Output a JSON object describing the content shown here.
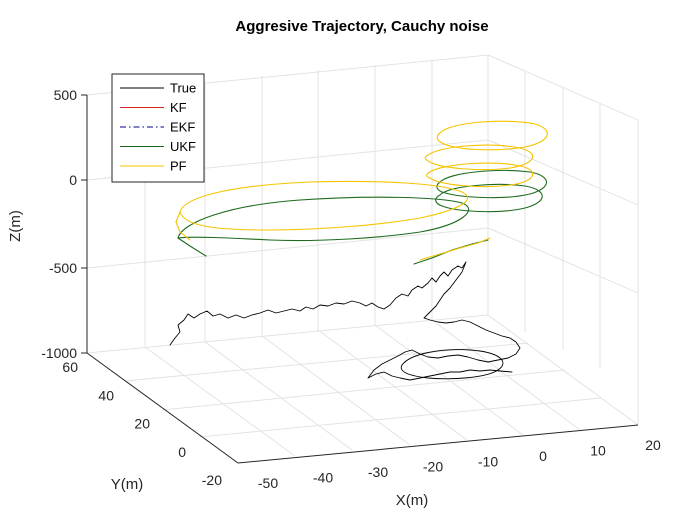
{
  "chart_data": {
    "type": "line",
    "title": "Aggresive Trajectory, Cauchy noise",
    "xlabel": "X(m)",
    "ylabel": "Y(m)",
    "zlabel": "Z(m)",
    "xlim": [
      -50,
      20
    ],
    "ylim": [
      -20,
      60
    ],
    "zlim": [
      -1000,
      500
    ],
    "xticks": [
      "-50",
      "-40",
      "-30",
      "-20",
      "-10",
      "0",
      "10",
      "20"
    ],
    "yticks": [
      "-20",
      "0",
      "20",
      "40",
      "60"
    ],
    "zticks": [
      "-1000",
      "-500",
      "0",
      "500"
    ],
    "grid": true,
    "legend_position": "top-left",
    "series": [
      {
        "name": "True",
        "color": "#000000",
        "style": "solid"
      },
      {
        "name": "KF",
        "color": "#d62728",
        "style": "solid"
      },
      {
        "name": "EKF",
        "color": "#00008b",
        "style": "dashdot"
      },
      {
        "name": "UKF",
        "color": "#1e6b1e",
        "style": "solid"
      },
      {
        "name": "PF",
        "color": "#f5c400",
        "style": "solid"
      }
    ]
  }
}
